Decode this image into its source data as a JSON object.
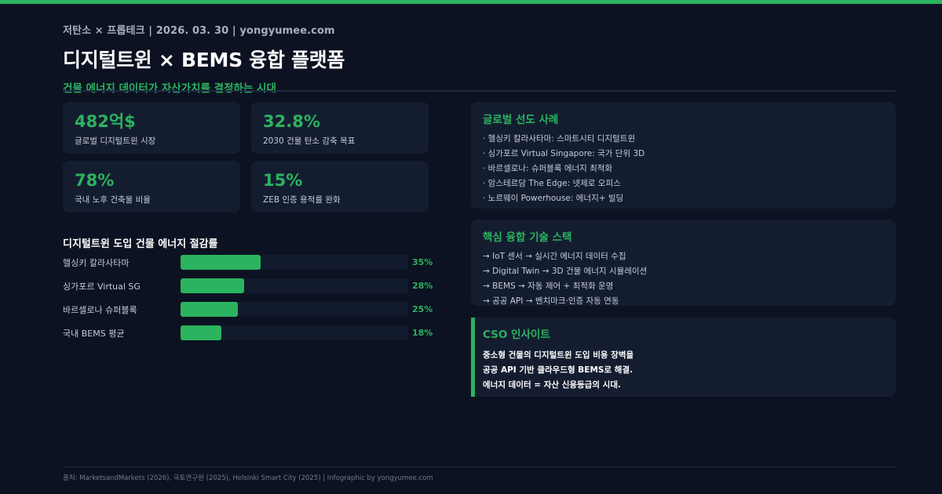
{
  "header": {
    "meta": "저탄소 × 프롭테크 | 2026. 03. 30 | yongyumee.com",
    "title": "디지털트윈 × BEMS 융합 플랫폼",
    "subtitle": "건물 에너지 데이터가 자산가치를 결정하는 시대"
  },
  "stats": [
    {
      "value": "482억$",
      "label": "글로벌 디지털트윈 시장"
    },
    {
      "value": "32.8%",
      "label": "2030 건물 탄소 감축 목표"
    },
    {
      "value": "78%",
      "label": "국내 노후 건축물 비율"
    },
    {
      "value": "15%",
      "label": "ZEB 인증 용적률 완화"
    }
  ],
  "chart_data": {
    "type": "bar",
    "orientation": "horizontal",
    "title": "디지털트윈 도입 건물 에너지 절감률",
    "categories": [
      "헬싱키 칼라사타마",
      "싱가포르 Virtual SG",
      "바르셀로나 슈퍼블록",
      "국내 BEMS 평균"
    ],
    "values": [
      35,
      28,
      25,
      18
    ],
    "value_labels": [
      "35%",
      "28%",
      "25%",
      "18%"
    ],
    "xlim": [
      0,
      100
    ],
    "unit": "%",
    "bar_color": "#2bb35f",
    "track_color": "#121a2d"
  },
  "cases_panel": {
    "title": "글로벌 선도 사례",
    "items": [
      "· 헬싱키 칼라사타마: 스마트시티 디지털트윈",
      "· 싱가포르 Virtual Singapore: 국가 단위 3D",
      "· 바르셀로나: 슈퍼블록 에너지 최적화",
      "· 암스테르담 The Edge: 넷제로 오피스",
      "· 노르웨이 Powerhouse: 에너지+ 빌딩"
    ]
  },
  "tech_panel": {
    "title": "핵심 융합 기술 스택",
    "items": [
      "→ IoT 센서 → 실시간 에너지 데이터 수집",
      "→ Digital Twin → 3D 건물 에너지 시뮬레이션",
      "→ BEMS → 자동 제어 + 최적화 운영",
      "→ 공공 API → 벤치마크·인증 자동 연동"
    ]
  },
  "insight": {
    "title": "CSO 인사이트",
    "lines": [
      "중소형 건물의 디지털트윈 도입 비용 장벽을",
      "공공 API 기반 클라우드형 BEMS로 해결.",
      "에너지 데이터 = 자산 신용등급의 시대."
    ]
  },
  "footer": {
    "source": "출처: MarketsandMarkets (2026), 국토연구원 (2025), Helsinki Smart City (2025) | Infographic by yongyumee.com"
  },
  "colors": {
    "accent": "#2bb35f",
    "background": "#0c1221",
    "card": "#141d30"
  }
}
